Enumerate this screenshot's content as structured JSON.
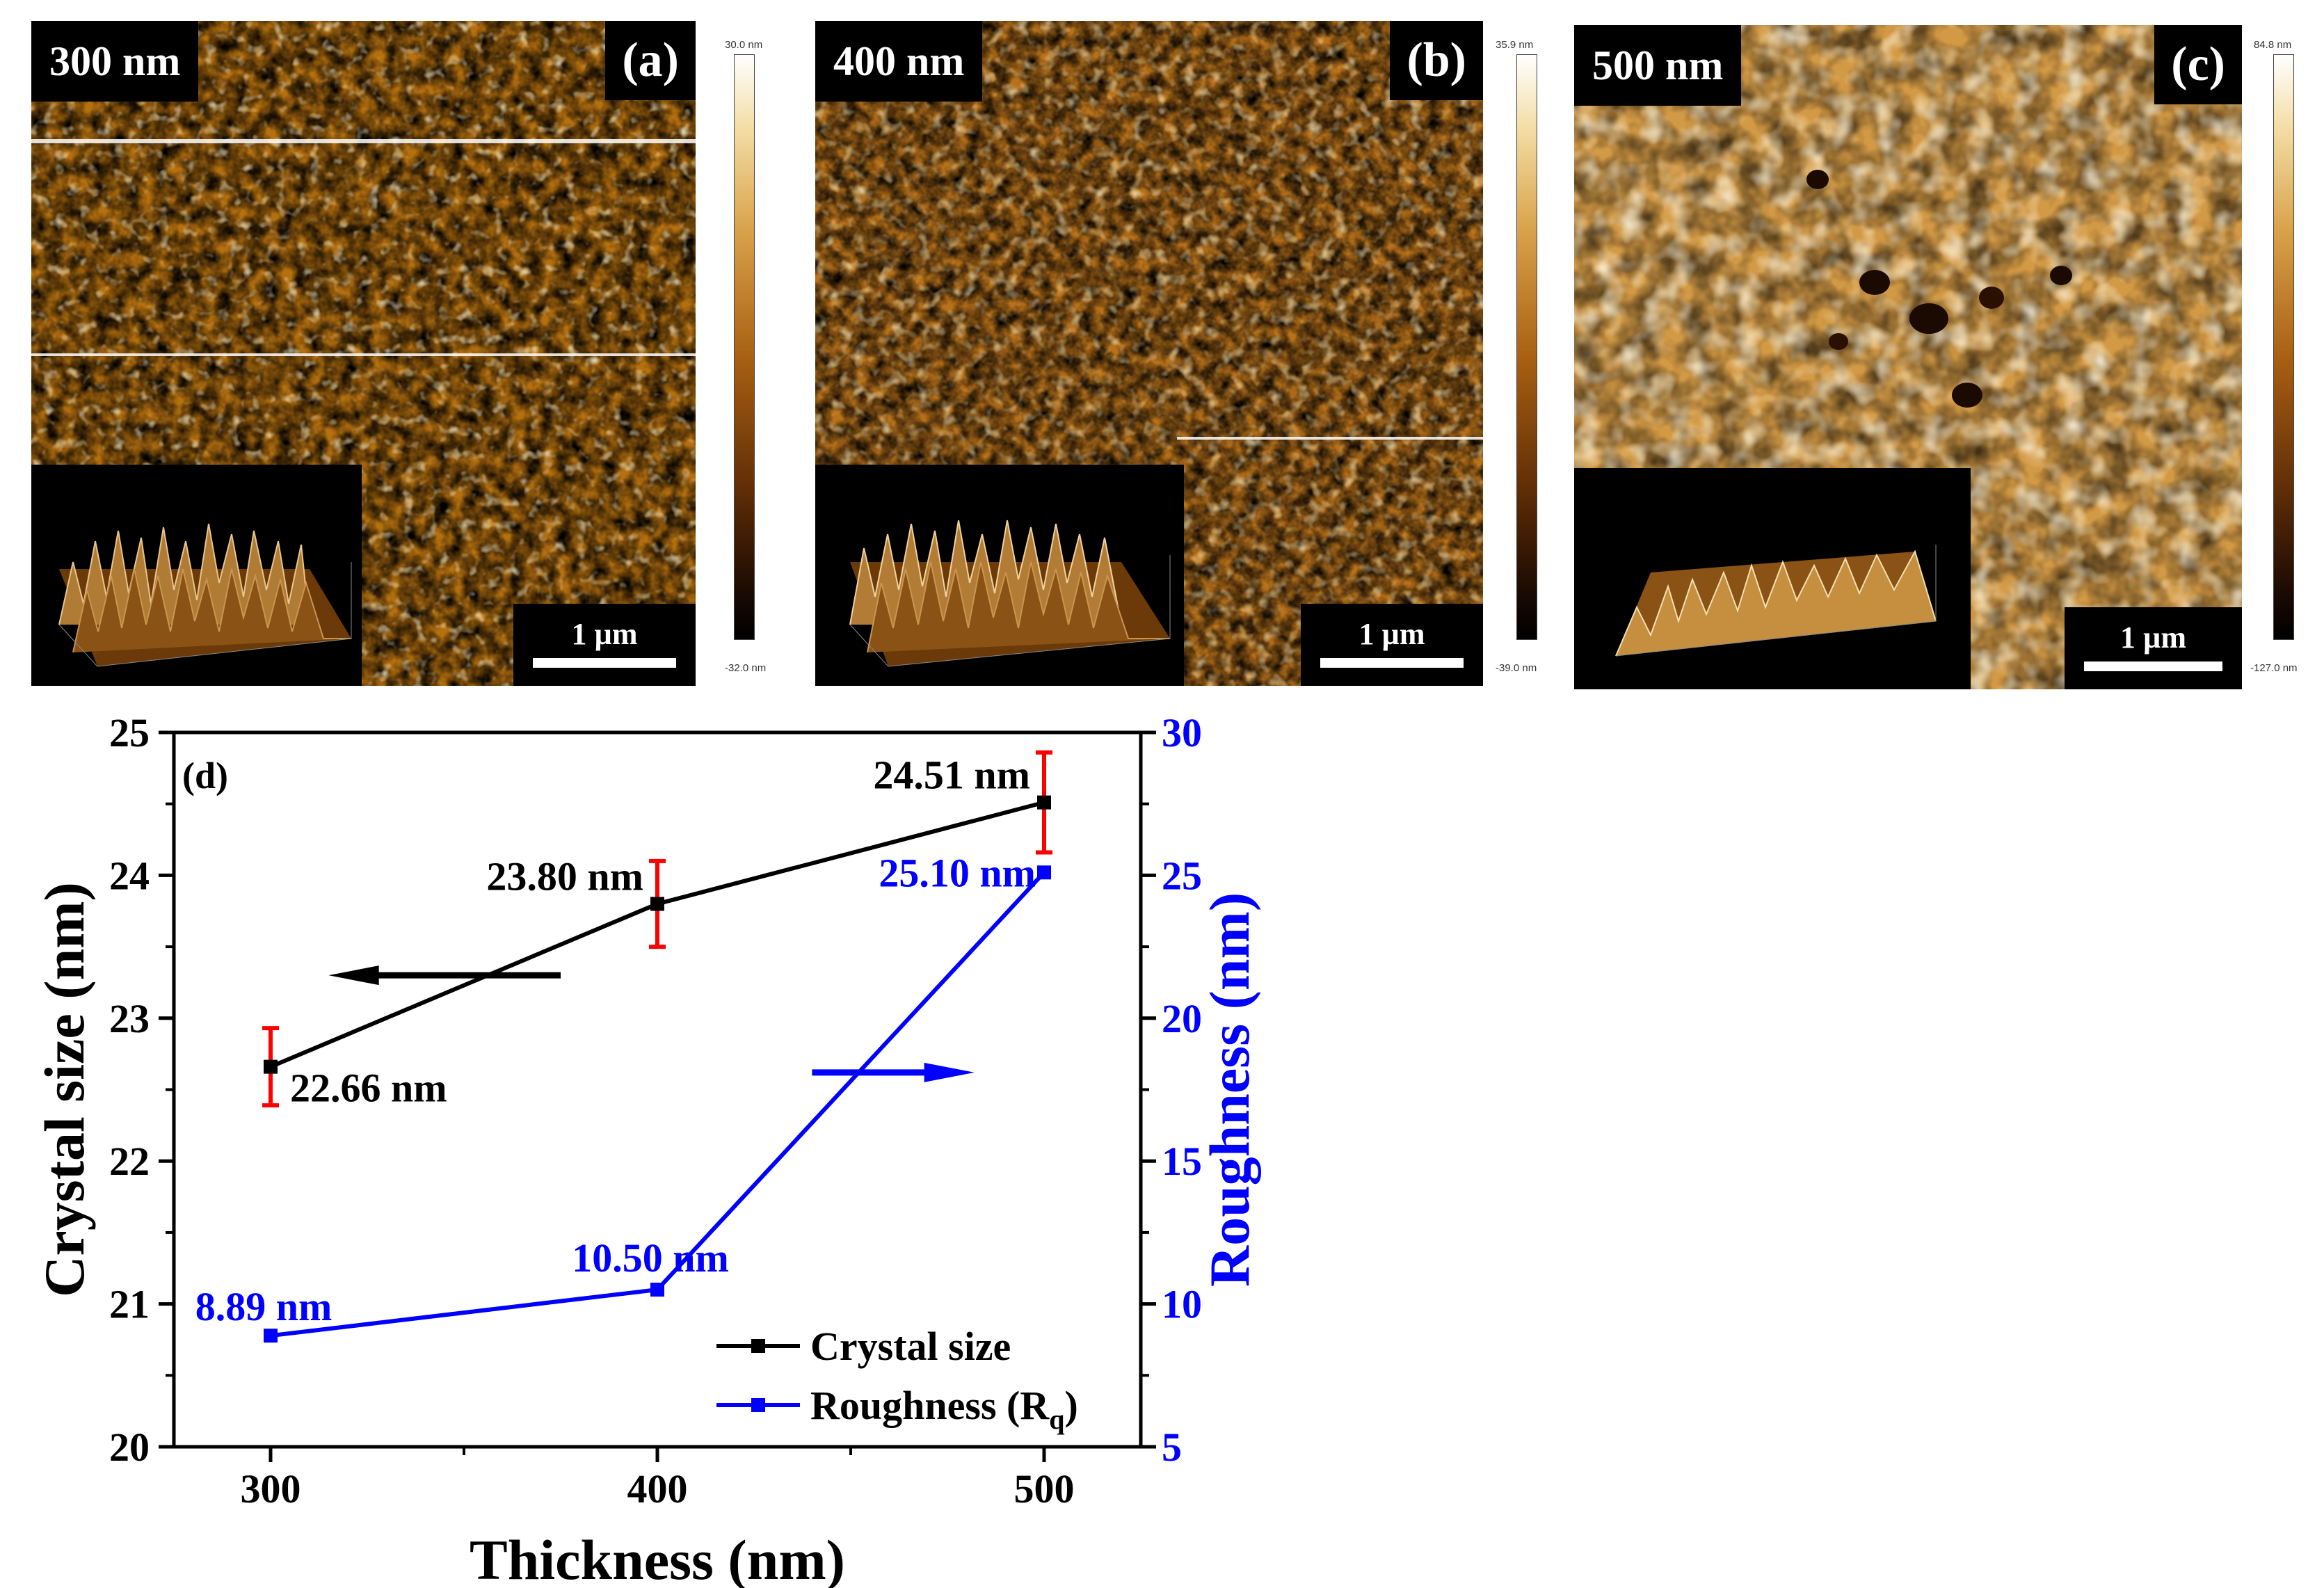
{
  "panels": [
    {
      "thickness_label": "300 nm",
      "letter": "(a)",
      "scale_label": "1 µm",
      "cbar_max": "30.0 nm",
      "cbar_min": "-32.0 nm"
    },
    {
      "thickness_label": "400 nm",
      "letter": "(b)",
      "scale_label": "1 µm",
      "cbar_max": "35.9 nm",
      "cbar_min": "-39.0 nm"
    },
    {
      "thickness_label": "500 nm",
      "letter": "(c)",
      "scale_label": "1 µm",
      "cbar_max": "84.8 nm",
      "cbar_min": "-127.0 nm"
    }
  ],
  "colors": {
    "crystal": "#000000",
    "roughness": "#0000ff",
    "errorbar": "#ff0000",
    "right_axis": "#0000ff"
  },
  "chart_data": {
    "type": "line",
    "panel_label": "(d)",
    "title": "",
    "xlabel": "Thickness (nm)",
    "ylabel": "Crystal size (nm)",
    "y2label": "Roughness (nm)",
    "x": [
      300,
      400,
      500
    ],
    "xlim": [
      275,
      525
    ],
    "ylim": [
      20,
      25
    ],
    "y2lim": [
      5,
      30
    ],
    "xticks": [
      300,
      400,
      500
    ],
    "yticks": [
      20,
      21,
      22,
      23,
      24,
      25
    ],
    "y2ticks": [
      5,
      10,
      15,
      20,
      25,
      30
    ],
    "series": [
      {
        "name": "Crystal size",
        "axis": "left",
        "values": [
          22.66,
          23.8,
          24.51
        ],
        "errors": [
          0.27,
          0.3,
          0.35
        ],
        "labels": [
          "22.66 nm",
          "23.80 nm",
          "24.51 nm"
        ]
      },
      {
        "name": "Roughness (R",
        "name_sub": "q",
        "name_end": ")",
        "axis": "right",
        "values": [
          8.89,
          10.5,
          25.1
        ],
        "labels": [
          "8.89 nm",
          "10.50 nm",
          "25.10 nm"
        ]
      }
    ],
    "legend_position": "bottom-right",
    "annotations": [
      "arrow pointing left to crystal size axis",
      "arrow pointing right to roughness axis"
    ]
  }
}
